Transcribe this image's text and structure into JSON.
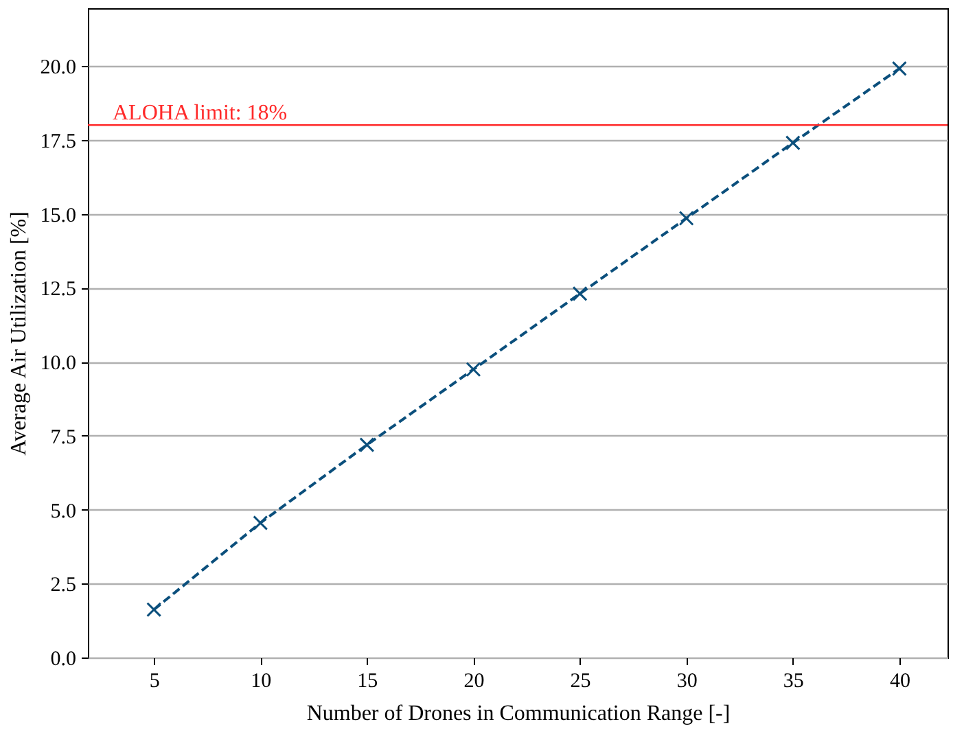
{
  "chart_data": {
    "type": "line",
    "xlabel": "Number of Drones in Communication Range [-]",
    "ylabel": "Average Air Utilization [%]",
    "x": [
      5,
      10,
      15,
      20,
      25,
      30,
      35,
      40
    ],
    "series": [
      {
        "color": "#0b4f7c",
        "values": [
          1.62,
          4.55,
          7.19,
          9.74,
          12.3,
          14.85,
          17.4,
          19.91
        ]
      }
    ],
    "xlim": [
      1.9,
      42.26
    ],
    "ylim": [
      0,
      21.95
    ],
    "xticks": [
      5,
      10,
      15,
      20,
      25,
      30,
      35,
      40
    ],
    "yticks": [
      {
        "value": 0,
        "label": "0.0"
      },
      {
        "value": 2.5,
        "label": "2.5"
      },
      {
        "value": 5,
        "label": "5.0"
      },
      {
        "value": 7.5,
        "label": "7.5"
      },
      {
        "value": 10,
        "label": "10.0"
      },
      {
        "value": 12.5,
        "label": "12.5"
      },
      {
        "value": 15,
        "label": "15.0"
      },
      {
        "value": 17.5,
        "label": "17.5"
      },
      {
        "value": 20,
        "label": "20.0"
      }
    ],
    "ref_lines": [
      {
        "axis": "y",
        "value": 18,
        "label": "ALOHA limit: 18%",
        "color": "#ff2a2a"
      }
    ],
    "grid": "y",
    "marker": "cross",
    "line_style": "dashed"
  }
}
